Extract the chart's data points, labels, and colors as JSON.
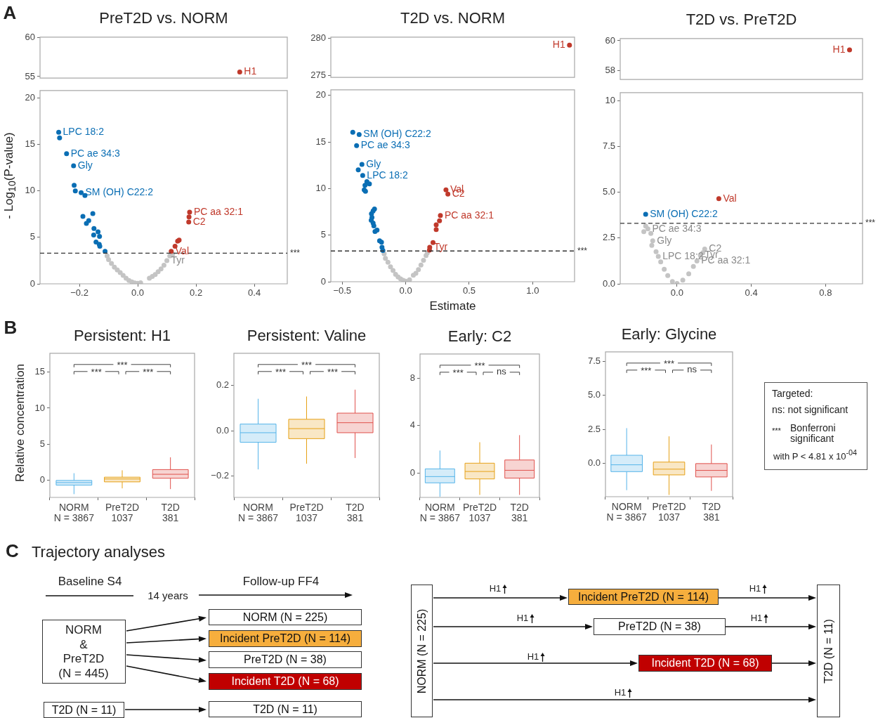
{
  "chart_data": [
    {
      "type": "scatter",
      "title": "PreT2D vs. NORM",
      "tick_labels": "y",
      "marker": "circle",
      "xlim": [
        -0.335,
        0.513
      ],
      "ylim": [
        54.8,
        60.1
      ],
      "yticks": [
        55,
        60
      ],
      "annotations": [
        "A",
        {
          "text": "H1",
          "x": 0.35,
          "y": 55.6
        }
      ],
      "series": [
        {
          "color": "#c0392b",
          "x": [
            0.35
          ],
          "values": [
            55.6
          ]
        }
      ]
    },
    {
      "type": "scatter",
      "ylabel": "- Log$_{10}$(P-value)",
      "marker": "circle",
      "xlim": [
        -0.335,
        0.513
      ],
      "ylim": [
        0,
        20.8
      ],
      "yticks": [
        0,
        5,
        10,
        15,
        20
      ],
      "xticks": [
        {
          "value": -0.2,
          "label": "−0.2"
        },
        {
          "value": 0,
          "label": "0.0"
        },
        0.2,
        0.4
      ],
      "ref_lines": [
        {
          "axis": "y",
          "value": 3.3,
          "label": "***",
          "line_style": "dashed"
        }
      ],
      "annotations": [
        {
          "text": "LPC 18:2",
          "x": -0.271,
          "y": 16.3
        },
        {
          "text": "PC ae 34:3",
          "x": -0.244,
          "y": 14.0
        },
        {
          "text": "Gly",
          "x": -0.22,
          "y": 12.7
        },
        {
          "text": "SM (OH) C22:2",
          "x": -0.194,
          "y": 9.8
        },
        {
          "text": "PC aa 32:1",
          "x": 0.178,
          "y": 7.7
        },
        {
          "text": "C2",
          "x": 0.175,
          "y": 6.65
        },
        {
          "text": "Val",
          "x": 0.115,
          "y": 3.5
        },
        {
          "text": "Tyr",
          "x": 0.1,
          "y": 2.5
        }
      ],
      "series": [
        {
          "color": "#0a6eb4",
          "x": [
            -0.271,
            -0.268,
            -0.244,
            -0.22,
            -0.218,
            -0.214,
            -0.194,
            -0.181,
            -0.188,
            -0.154,
            -0.168,
            -0.176,
            -0.15,
            -0.136,
            -0.151,
            -0.131,
            -0.143,
            -0.132,
            -0.13,
            -0.112
          ],
          "values": [
            16.3,
            15.7,
            14.0,
            12.7,
            10.6,
            10.0,
            9.8,
            9.5,
            7.25,
            7.55,
            6.8,
            6.5,
            5.95,
            5.6,
            5.25,
            5.1,
            4.5,
            4.25,
            4.05,
            3.5
          ]
        },
        {
          "color": "#c0392b",
          "x": [
            0.115,
            0.128,
            0.137,
            0.142,
            0.175,
            0.176,
            0.178
          ],
          "values": [
            3.5,
            4.05,
            4.6,
            4.7,
            6.65,
            7.2,
            7.7
          ]
        },
        {
          "color": "#c4c4c4",
          "x": [
            -0.105,
            -0.1,
            -0.09,
            -0.08,
            -0.07,
            -0.06,
            -0.05,
            -0.04,
            -0.03,
            -0.02,
            -0.01,
            0,
            0.01,
            0.04,
            0.05,
            0.06,
            0.07,
            0.08,
            0.09,
            0.1,
            0.11,
            0.12
          ],
          "values": [
            3.0,
            2.6,
            2.2,
            1.8,
            1.5,
            1.2,
            0.9,
            0.6,
            0.35,
            0.2,
            0.1,
            0.05,
            0.12,
            0.6,
            0.8,
            1.0,
            1.3,
            1.6,
            2.0,
            2.5,
            3.0,
            3.2
          ]
        }
      ]
    },
    {
      "type": "scatter",
      "title": "T2D vs. NORM",
      "tick_labels": "y",
      "marker": "circle",
      "xlim": [
        -0.59,
        1.33
      ],
      "ylim": [
        274.7,
        280.2
      ],
      "yticks": [
        275,
        280
      ],
      "annotations": [
        {
          "text": "H1",
          "x": 1.29,
          "y": 279.1
        }
      ],
      "series": [
        {
          "color": "#c0392b",
          "x": [
            1.29
          ],
          "values": [
            279.1
          ]
        }
      ]
    },
    {
      "type": "scatter",
      "xlabel": "Estimate",
      "marker": "circle",
      "xlim": [
        -0.59,
        1.33
      ],
      "ylim": [
        0,
        20.6
      ],
      "yticks": [
        0,
        5,
        10,
        15,
        20
      ],
      "xticks": [
        {
          "value": -0.5,
          "label": "−0.5"
        },
        {
          "value": 0,
          "label": "0.0"
        },
        0.5,
        {
          "value": 1,
          "label": "1.0"
        }
      ],
      "ref_lines": [
        {
          "axis": "y",
          "value": 3.3,
          "label": "***",
          "line_style": "dashed"
        }
      ],
      "annotations": [
        {
          "text": "SM (OH) C22:2",
          "x": -0.367,
          "y": 15.8
        },
        {
          "text": "PC ae 34:3",
          "x": -0.387,
          "y": 14.6
        },
        {
          "text": "Gly",
          "x": -0.345,
          "y": 12.6
        },
        {
          "text": "LPC 18:2",
          "x": -0.339,
          "y": 11.4
        },
        {
          "text": "Val",
          "x": 0.317,
          "y": 9.85
        },
        {
          "text": "C2",
          "x": 0.332,
          "y": 9.4
        },
        {
          "text": "PC aa 32:1",
          "x": 0.273,
          "y": 7.1
        },
        {
          "text": "Tyr",
          "x": 0.189,
          "y": 3.7
        }
      ],
      "series": [
        {
          "color": "#0a6eb4",
          "x": [
            -0.417,
            -0.367,
            -0.387,
            -0.345,
            -0.374,
            -0.339,
            -0.306,
            -0.286,
            -0.321,
            -0.327,
            -0.317,
            -0.246,
            -0.257,
            -0.27,
            -0.266,
            -0.272,
            -0.257,
            -0.251,
            -0.226,
            -0.242,
            -0.206,
            -0.191,
            -0.187,
            -0.18
          ],
          "values": [
            16.05,
            15.8,
            14.6,
            12.6,
            12.0,
            11.4,
            10.75,
            10.5,
            10.35,
            9.85,
            9.7,
            7.8,
            7.6,
            7.3,
            6.9,
            6.6,
            6.3,
            6.0,
            5.55,
            5.4,
            4.4,
            4.25,
            3.7,
            3.35
          ]
        },
        {
          "color": "#c0392b",
          "x": [
            0.189,
            0.187,
            0.215,
            0.24,
            0.24,
            0.266,
            0.273,
            0.317,
            0.332
          ],
          "values": [
            3.7,
            3.4,
            4.2,
            5.6,
            6.1,
            6.55,
            7.1,
            9.85,
            9.4
          ]
        },
        {
          "color": "#c4c4c4",
          "x": [
            -0.17,
            -0.16,
            -0.14,
            -0.12,
            -0.1,
            -0.08,
            -0.06,
            -0.04,
            -0.02,
            0,
            0.03,
            0.06,
            0.08,
            0.1,
            0.12,
            0.14,
            0.16,
            0.17
          ],
          "values": [
            3.0,
            2.5,
            2.1,
            1.6,
            1.2,
            0.8,
            0.5,
            0.3,
            0.15,
            0.05,
            0.2,
            0.7,
            0.9,
            1.3,
            1.8,
            2.3,
            2.8,
            3.1
          ]
        }
      ]
    },
    {
      "type": "scatter",
      "title": "T2D vs. PreT2D",
      "tick_labels": "y",
      "marker": "circle",
      "xlim": [
        -0.306,
        0.999
      ],
      "ylim": [
        57.4,
        60.15
      ],
      "yticks": [
        58,
        60
      ],
      "annotations": [
        {
          "text": "H1",
          "x": 0.929,
          "y": 59.39
        }
      ],
      "series": [
        {
          "color": "#c0392b",
          "x": [
            0.929
          ],
          "values": [
            59.39
          ]
        }
      ]
    },
    {
      "type": "scatter",
      "marker": "circle",
      "xlim": [
        -0.306,
        0.999
      ],
      "ylim": [
        0,
        10.44
      ],
      "yticks": [
        {
          "value": 0,
          "label": "0.0"
        },
        2.5,
        {
          "value": 5,
          "label": "5.0"
        },
        7.5,
        10
      ],
      "xticks": [
        {
          "value": 0,
          "label": "0.0"
        },
        0.4,
        0.8
      ],
      "ref_lines": [
        {
          "axis": "y",
          "value": 3.3,
          "label": "***",
          "line_style": "dashed"
        }
      ],
      "annotations": [
        {
          "text": "SM (OH) C22:2",
          "x": -0.169,
          "y": 3.8
        },
        {
          "text": "Val",
          "x": 0.225,
          "y": 4.65
        },
        {
          "text": "PC ae 34:3",
          "x": -0.157,
          "y": 3.0
        },
        {
          "text": "Gly",
          "x": -0.131,
          "y": 2.35
        },
        {
          "text": "Tyr",
          "x": 0.126,
          "y": 1.55
        },
        {
          "text": "C2",
          "x": 0.149,
          "y": 1.9
        },
        {
          "text": "LPC 18:2",
          "x": -0.101,
          "y": 1.5
        },
        {
          "text": "PC aa 32:1",
          "x": 0.107,
          "y": 1.25
        }
      ],
      "series": [
        {
          "color": "#0a6eb4",
          "x": [
            -0.169
          ],
          "values": [
            3.8
          ]
        },
        {
          "color": "#c0392b",
          "x": [
            0.225
          ],
          "values": [
            4.65
          ]
        },
        {
          "color": "#c4c4c4",
          "x": [
            -0.169,
            -0.157,
            -0.179,
            -0.141,
            -0.131,
            -0.136,
            -0.113,
            -0.101,
            -0.088,
            -0.069,
            -0.05,
            -0.025,
            0,
            0.031,
            0.063,
            0.088,
            0.107,
            0.126,
            0.139,
            0.149
          ],
          "values": [
            3.15,
            3.0,
            2.85,
            2.75,
            2.35,
            2.1,
            1.75,
            1.5,
            1.2,
            0.8,
            0.45,
            0.12,
            0.02,
            0.2,
            0.55,
            0.95,
            1.25,
            1.55,
            1.7,
            1.9
          ]
        }
      ]
    },
    {
      "type": "box",
      "title": "Persistent: H1",
      "ylabel": "Relative concentration",
      "categories": [
        "NORM\nN = 3867",
        "PreT2D\n1037",
        "T2D\n381"
      ],
      "colors": [
        "#56b4e9",
        "#e6a117",
        "#e0524d"
      ],
      "ylim": [
        -2.35,
        17.6
      ],
      "yticks": [
        0,
        5,
        10,
        15
      ],
      "annotations": [
        "B",
        "***",
        "***",
        "***"
      ],
      "boxes": [
        {
          "low": -1.9,
          "q1": -0.65,
          "median": -0.3,
          "q3": 0.0,
          "high": 1.0
        },
        {
          "low": -1.1,
          "q1": -0.2,
          "median": 0.2,
          "q3": 0.45,
          "high": 1.4
        },
        {
          "low": -1.2,
          "q1": 0.3,
          "median": 0.85,
          "q3": 1.5,
          "high": 3.2
        }
      ]
    },
    {
      "type": "box",
      "title": "Persistent: Valine",
      "categories": [
        "NORM\nN = 3867",
        "PreT2D\n1037",
        "T2D\n381"
      ],
      "colors": [
        "#56b4e9",
        "#e6a117",
        "#e0524d"
      ],
      "ylim": [
        -0.293,
        0.34
      ],
      "yticks": [
        {
          "value": -0.2,
          "label": "−0.2"
        },
        {
          "value": 0,
          "label": "0.0"
        },
        0.2
      ],
      "annotations": [
        "***",
        "***",
        "***"
      ],
      "boxes": [
        {
          "low": -0.17,
          "q1": -0.051,
          "median": -0.009,
          "q3": 0.029,
          "high": 0.14
        },
        {
          "low": -0.145,
          "q1": -0.035,
          "median": 0.009,
          "q3": 0.05,
          "high": 0.15
        },
        {
          "low": -0.12,
          "q1": -0.009,
          "median": 0.035,
          "q3": 0.077,
          "high": 0.18
        }
      ]
    },
    {
      "type": "box",
      "title": "Early: C2",
      "categories": [
        "NORM\nN = 3867",
        "PreT2D\n1037",
        "T2D\n381"
      ],
      "colors": [
        "#56b4e9",
        "#e6a117",
        "#e0524d"
      ],
      "ylim": [
        -2.06,
        10.06
      ],
      "yticks": [
        0,
        4,
        8
      ],
      "annotations": [
        "***",
        "***",
        "ns"
      ],
      "boxes": [
        {
          "low": -2.0,
          "q1": -0.83,
          "median": -0.3,
          "q3": 0.35,
          "high": 1.9
        },
        {
          "low": -1.85,
          "q1": -0.5,
          "median": 0.13,
          "q3": 0.83,
          "high": 2.6
        },
        {
          "low": -1.85,
          "q1": -0.43,
          "median": 0.23,
          "q3": 1.1,
          "high": 3.2
        }
      ]
    },
    {
      "type": "box",
      "title": "Early: Glycine",
      "categories": [
        "NORM\nN = 3867",
        "PreT2D\n1037",
        "T2D\n381"
      ],
      "colors": [
        "#56b4e9",
        "#e6a117",
        "#e0524d"
      ],
      "ylim": [
        -2.43,
        8.2
      ],
      "yticks": [
        {
          "value": 0,
          "label": "0.0"
        },
        2.5,
        {
          "value": 5,
          "label": "5.0"
        },
        7.5
      ],
      "annotations": [
        "***",
        "***",
        "ns"
      ],
      "boxes": [
        {
          "low": -1.95,
          "q1": -0.59,
          "median": -0.09,
          "q3": 0.61,
          "high": 2.6
        },
        {
          "low": -2.3,
          "q1": -0.83,
          "median": -0.41,
          "q3": 0.11,
          "high": 2.0
        },
        {
          "low": -2.0,
          "q1": -0.98,
          "median": -0.5,
          "q3": 0.0,
          "high": 1.4
        }
      ]
    },
    {
      "type": "other",
      "annotations": [
        "Targeted:",
        "ns: not significant",
        "***",
        "Bonferroni significant",
        "with P < 4.81 x 10$^{-04}$"
      ]
    },
    {
      "type": "other",
      "title": "Trajectory analyses",
      "annotations": [
        "C",
        "Baseline S4",
        "14 years",
        "Follow-up FF4",
        "NORM",
        "&",
        "PreT2D",
        "(N = 445)",
        "T2D (N = 11)",
        "NORM (N = 225)",
        "Incident PreT2D (N = 114)",
        "PreT2D (N = 38)",
        "Incident T2D (N = 68)",
        "T2D (N = 11)",
        "NORM (N = 225)",
        "T2D (N = 11)",
        "Incident PreT2D (N = 114)",
        "PreT2D (N = 38)",
        "Incident T2D (N = 68)",
        "H1",
        "H1",
        "H1",
        "H1",
        "H1",
        "H1"
      ]
    }
  ]
}
